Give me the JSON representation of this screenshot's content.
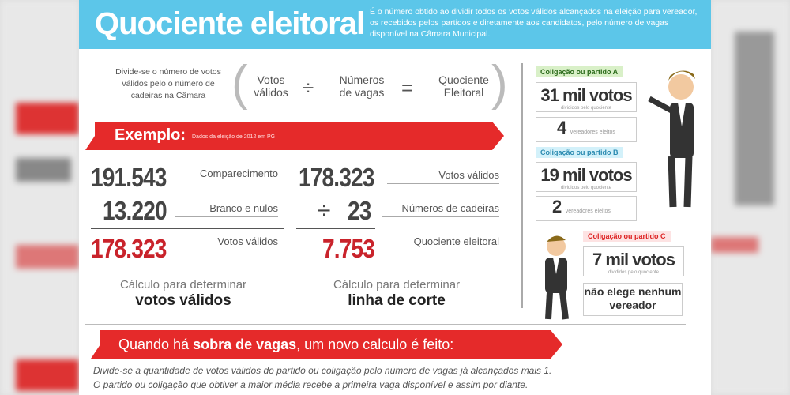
{
  "header": {
    "title": "Quociente eleitoral",
    "description": "É o número obtido ao dividir todos os votos válidos alcançados na eleição para vereador, os recebidos pelos partidos e diretamente aos candidatos, pelo número de vagas disponível na Câmara Municipal."
  },
  "formula": {
    "intro": "Divide-se o número de votos válidos pelo o número de cadeiras  na Câmara",
    "terms": [
      "Votos válidos",
      "Números de vagas",
      "Quociente Eleitoral"
    ],
    "operators": [
      "÷",
      "="
    ]
  },
  "example": {
    "label": "Exemplo:",
    "note": "Dados da eleição de 2012 em PG"
  },
  "left_calc": {
    "rows": [
      {
        "value": "191.543",
        "label": "Comparecimento"
      },
      {
        "value": "13.220",
        "label": "Branco e nulos"
      },
      {
        "value": "178.323",
        "label": "Votos válidos"
      }
    ],
    "caption": "Cálculo para determinar",
    "caption_bold": "votos válidos"
  },
  "right_calc": {
    "rows": [
      {
        "value": "178.323",
        "label": "Votos válidos"
      },
      {
        "operator": "÷",
        "value": "23",
        "label": "Números de cadeiras"
      },
      {
        "value": "7.753",
        "label": "Quociente eleitoral"
      }
    ],
    "caption": "Cálculo para determinar",
    "caption_bold": "linha de corte"
  },
  "coalitions": [
    {
      "name": "Coligação ou partido A",
      "votes": "31 mil votos",
      "note": "divididos pelo quociente",
      "seats": "4",
      "seats_label": "vereadores eleitos"
    },
    {
      "name": "Coligação ou partido B",
      "votes": "19 mil votos",
      "note": "divididos pelo quociente",
      "seats": "2",
      "seats_label": "vereadores eleitos"
    },
    {
      "name": "Coligação ou partido C",
      "votes": "7 mil votos",
      "note": "divididos pelo quociente",
      "result": "não elege nenhum vereador"
    }
  ],
  "footer": {
    "banner_prefix": "Quando há ",
    "banner_bold": "sobra de vagas",
    "banner_suffix": ", um novo calculo é feito:",
    "lines": [
      "Divide-se a quantidade de votos válidos do partido ou coligação pelo número de vagas já alcançados mais 1.",
      "O partido ou coligação que obtiver a maior média recebe a primeira vaga disponível e assim por diante."
    ]
  }
}
